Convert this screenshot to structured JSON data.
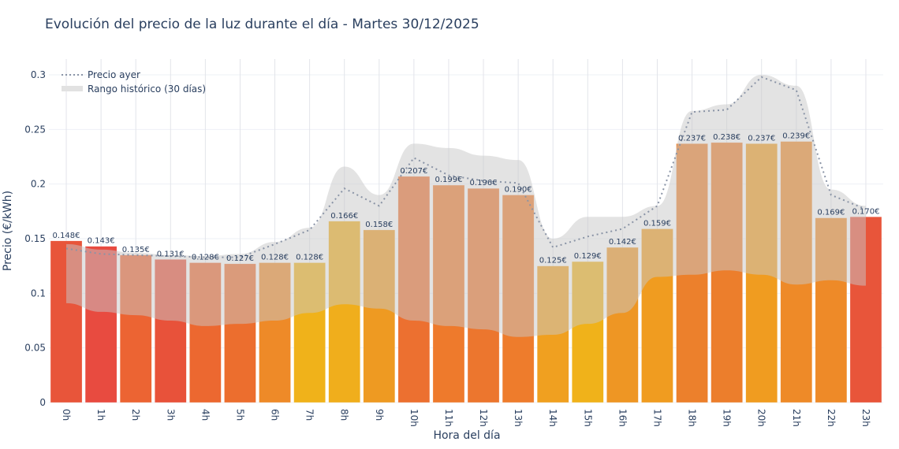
{
  "chart_data": {
    "type": "bar",
    "title": "Evolución del precio de la luz durante el día - Martes 30/12/2025",
    "xlabel": "Hora del día",
    "ylabel": "Precio (€/kWh)",
    "ylim": [
      0,
      0.315
    ],
    "yticks": [
      0,
      0.05,
      0.1,
      0.15,
      0.2,
      0.25,
      0.3
    ],
    "ytick_labels": [
      "0",
      "0.05",
      "0.1",
      "0.15",
      "0.2",
      "0.25",
      "0.3"
    ],
    "grid": true,
    "legend_position": "top-left",
    "categories": [
      "0h",
      "1h",
      "2h",
      "3h",
      "4h",
      "5h",
      "6h",
      "7h",
      "8h",
      "9h",
      "10h",
      "11h",
      "12h",
      "13h",
      "14h",
      "15h",
      "16h",
      "17h",
      "18h",
      "19h",
      "20h",
      "21h",
      "22h",
      "23h"
    ],
    "values": [
      0.148,
      0.143,
      0.135,
      0.131,
      0.128,
      0.127,
      0.128,
      0.128,
      0.166,
      0.158,
      0.207,
      0.199,
      0.196,
      0.19,
      0.125,
      0.129,
      0.142,
      0.159,
      0.237,
      0.238,
      0.237,
      0.239,
      0.169,
      0.17
    ],
    "data_labels": [
      "0.148€",
      "0.143€",
      "0.135€",
      "0.131€",
      "0.128€",
      "0.127€",
      "0.128€",
      "0.128€",
      "0.166€",
      "0.158€",
      "0.207€",
      "0.199€",
      "0.196€",
      "0.190€",
      "0.125€",
      "0.129€",
      "0.142€",
      "0.159€",
      "0.237€",
      "0.238€",
      "0.237€",
      "0.239€",
      "0.169€",
      "0.170€"
    ],
    "bar_colors": [
      "#e8553a",
      "#e84b40",
      "#ec6433",
      "#e8523a",
      "#ec6830",
      "#ec6e2e",
      "#ee8a28",
      "#f0b21a",
      "#f0ae1c",
      "#ee9a22",
      "#ec7030",
      "#ee7a2c",
      "#ec762e",
      "#ee7c2c",
      "#f0a020",
      "#f0b21a",
      "#ee9624",
      "#f09c20",
      "#ec802c",
      "#ec7e2c",
      "#f09c20",
      "#ee8a28",
      "#ee8a28",
      "#e8553a"
    ],
    "series": [
      {
        "name": "Precio ayer",
        "style": "dotted",
        "color": "#8a94a6",
        "values": [
          0.141,
          0.136,
          0.135,
          0.134,
          0.133,
          0.133,
          0.145,
          0.158,
          0.196,
          0.18,
          0.224,
          0.208,
          0.203,
          0.201,
          0.142,
          0.152,
          0.159,
          0.18,
          0.266,
          0.268,
          0.298,
          0.286,
          0.19,
          0.177
        ]
      },
      {
        "name": "Rango histórico (30 días)",
        "style": "band",
        "color": "#d3d3d3",
        "upper": [
          0.145,
          0.14,
          0.137,
          0.135,
          0.134,
          0.136,
          0.147,
          0.16,
          0.216,
          0.19,
          0.237,
          0.233,
          0.226,
          0.222,
          0.15,
          0.17,
          0.17,
          0.18,
          0.267,
          0.273,
          0.3,
          0.29,
          0.195,
          0.18
        ],
        "lower": [
          0.091,
          0.083,
          0.08,
          0.075,
          0.07,
          0.072,
          0.075,
          0.082,
          0.09,
          0.086,
          0.075,
          0.07,
          0.067,
          0.06,
          0.062,
          0.072,
          0.082,
          0.115,
          0.117,
          0.121,
          0.117,
          0.108,
          0.112,
          0.107
        ]
      }
    ]
  }
}
